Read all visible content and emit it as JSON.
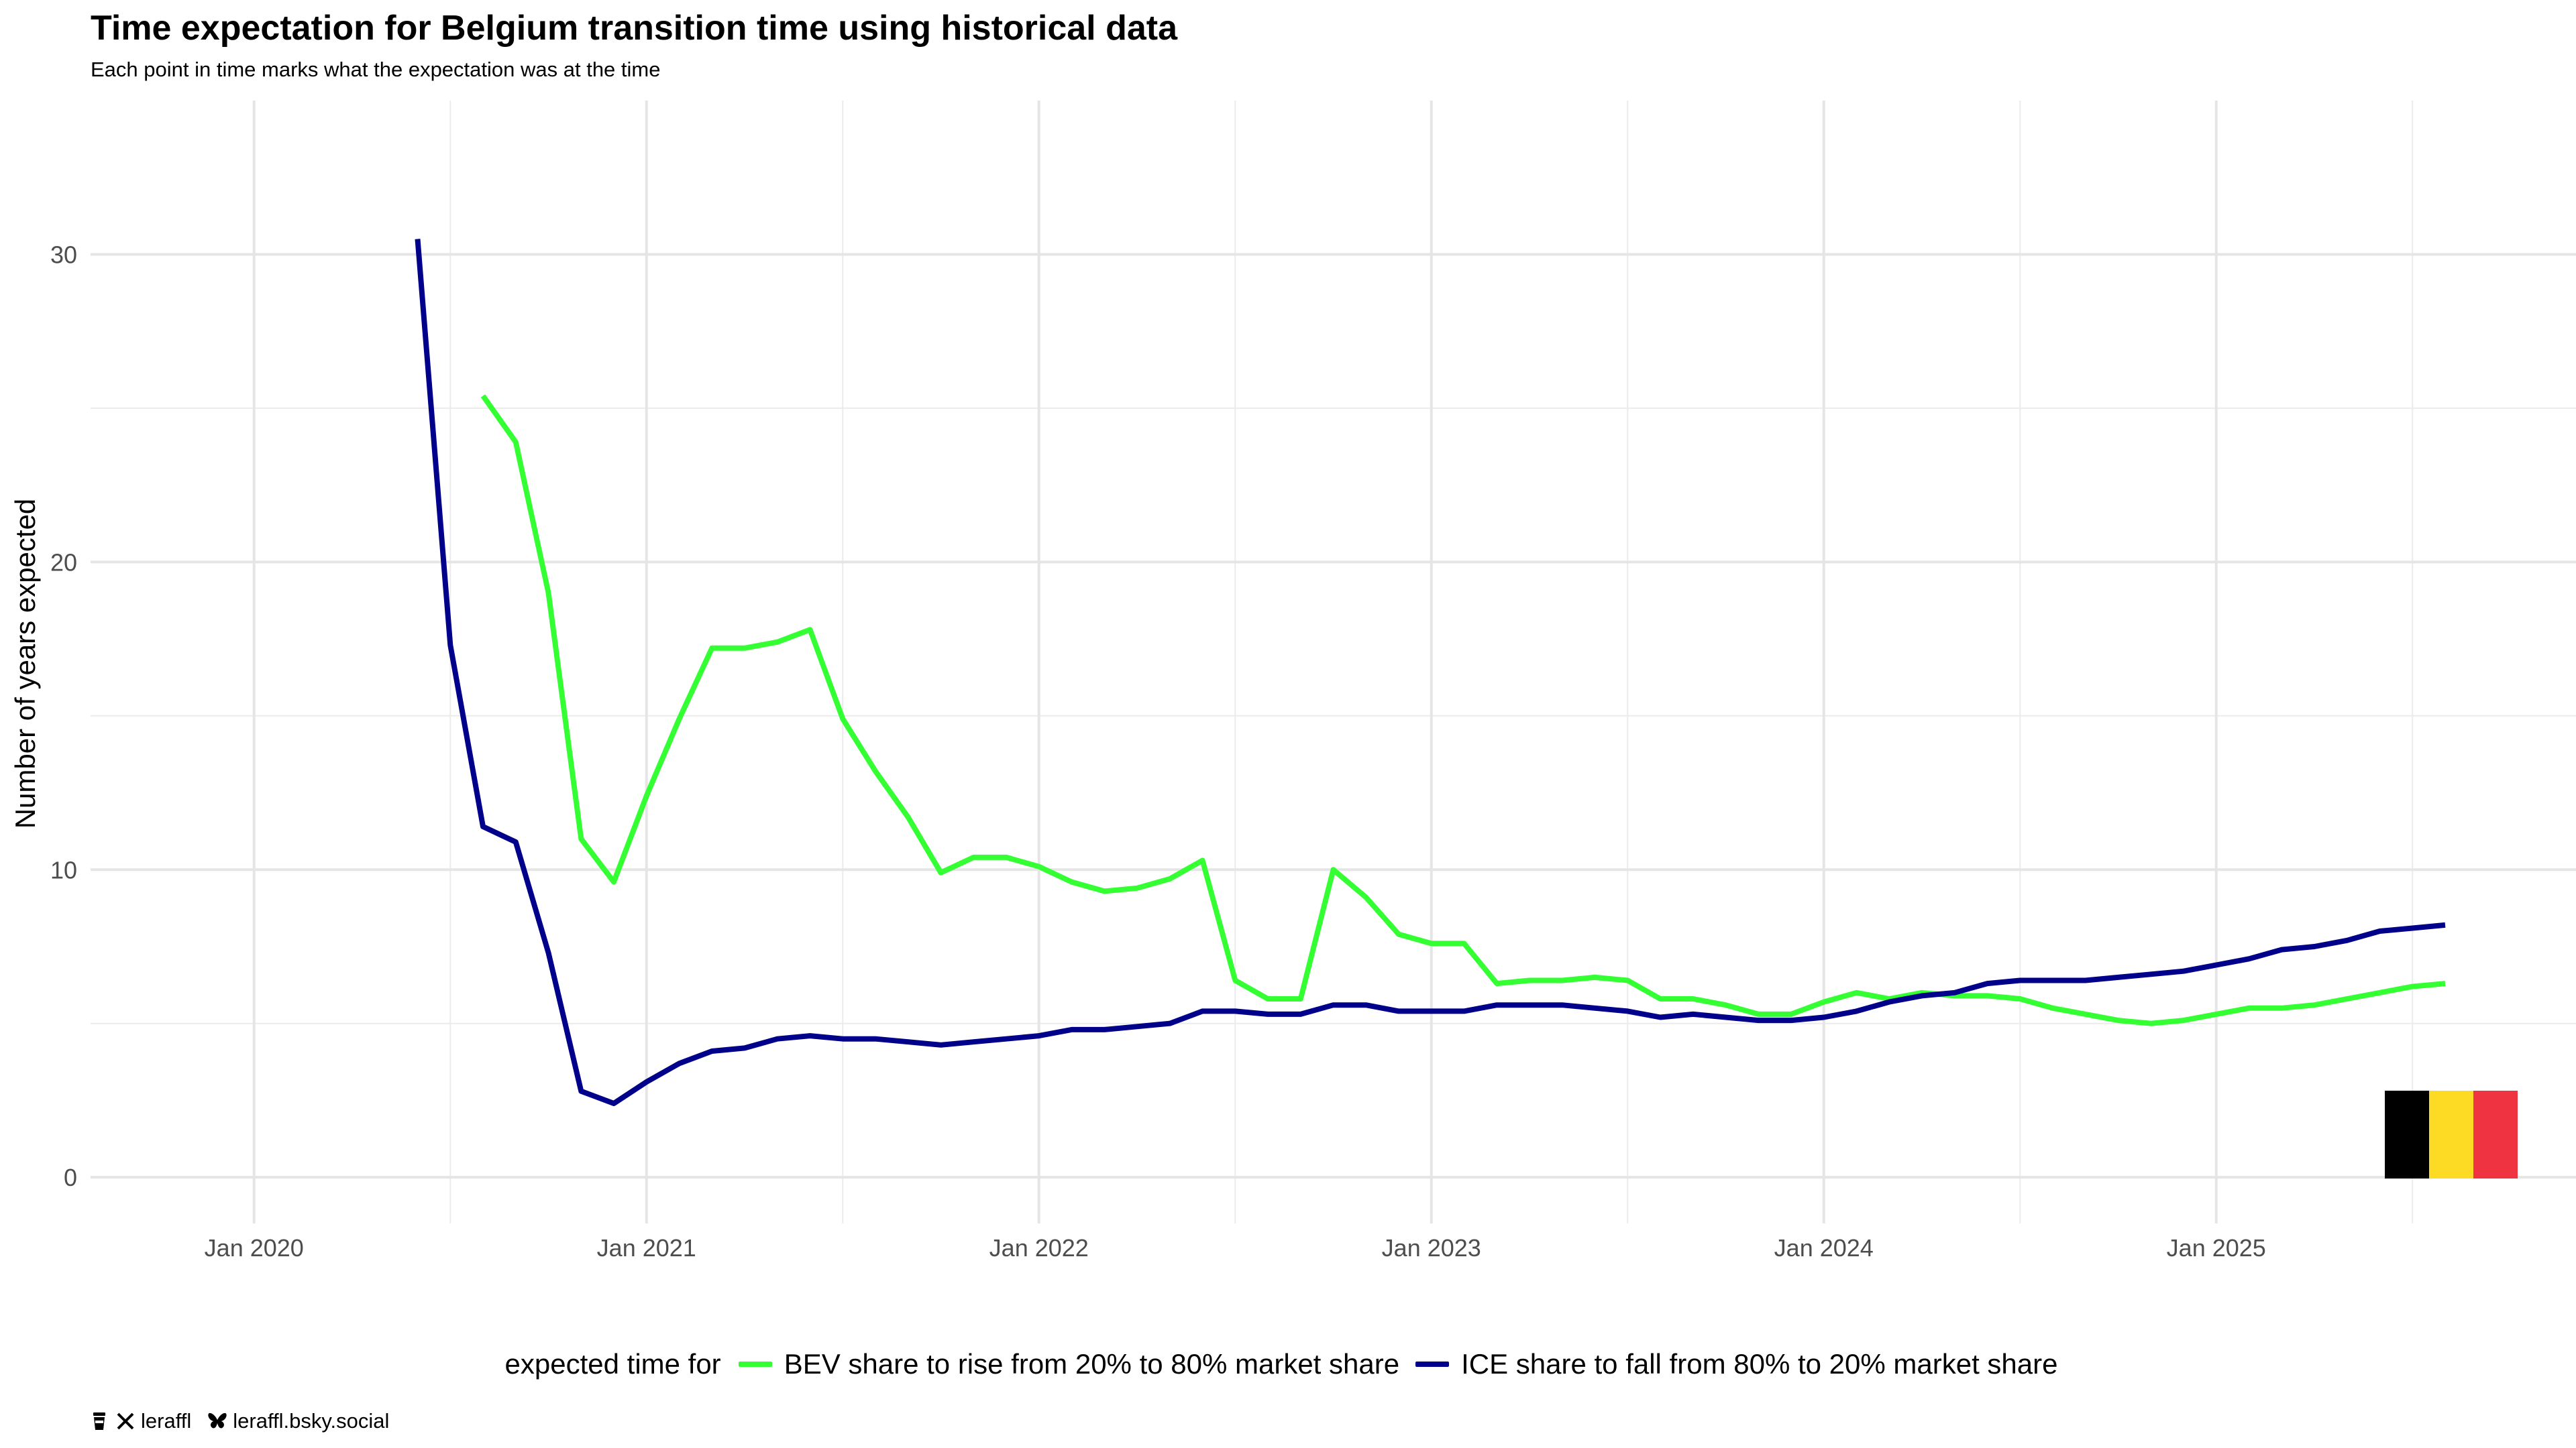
{
  "title": "Time expectation for Belgium transition time using historical data",
  "subtitle": "Each point in time marks what the expectation was at the time",
  "legend": {
    "title": "expected time for",
    "items": [
      {
        "label": "BEV share to rise from 20% to 80% market share",
        "color": "#33ff33"
      },
      {
        "label": "ICE share to fall from 80% to 20% market share",
        "color": "#00008b"
      }
    ]
  },
  "footer": {
    "icons": [
      "coffee-icon",
      "x-icon",
      "butterfly-icon"
    ],
    "handle": "leraffl",
    "bluesky": "leraffl.bsky.social"
  },
  "flag": {
    "country": "Belgium",
    "colors": [
      "#000000",
      "#fdda24",
      "#ef3340"
    ]
  },
  "chart_data": {
    "type": "line",
    "title": "Time expectation for Belgium transition time using historical data",
    "subtitle": "Each point in time marks what the expectation was at the time",
    "xlabel": "",
    "ylabel": "Number of years expected",
    "x_tick_labels": [
      "Jan 2020",
      "Jan 2021",
      "Jan 2022",
      "Jan 2023",
      "Jan 2024",
      "Jan 2025"
    ],
    "y_ticks": [
      0,
      10,
      20,
      30
    ],
    "xlim": [
      "2019-08",
      "2025-12"
    ],
    "ylim": [
      -1.5,
      35
    ],
    "grid": true,
    "legend_position": "bottom",
    "series": [
      {
        "name": "BEV share to rise from 20% to 80% market share",
        "color": "#33ff33",
        "points": [
          [
            "2020-08",
            25.4
          ],
          [
            "2020-09",
            23.9
          ],
          [
            "2020-10",
            19.0
          ],
          [
            "2020-11",
            11.0
          ],
          [
            "2020-12",
            9.6
          ],
          [
            "2021-01",
            12.4
          ],
          [
            "2021-02",
            14.9
          ],
          [
            "2021-03",
            17.2
          ],
          [
            "2021-04",
            17.2
          ],
          [
            "2021-05",
            17.4
          ],
          [
            "2021-06",
            17.8
          ],
          [
            "2021-07",
            14.9
          ],
          [
            "2021-08",
            13.2
          ],
          [
            "2021-09",
            11.7
          ],
          [
            "2021-10",
            9.9
          ],
          [
            "2021-11",
            10.4
          ],
          [
            "2021-12",
            10.4
          ],
          [
            "2022-01",
            10.1
          ],
          [
            "2022-02",
            9.6
          ],
          [
            "2022-03",
            9.3
          ],
          [
            "2022-04",
            9.4
          ],
          [
            "2022-05",
            9.7
          ],
          [
            "2022-06",
            10.3
          ],
          [
            "2022-07",
            6.4
          ],
          [
            "2022-08",
            5.8
          ],
          [
            "2022-09",
            5.8
          ],
          [
            "2022-10",
            10.0
          ],
          [
            "2022-11",
            9.1
          ],
          [
            "2022-12",
            7.9
          ],
          [
            "2023-01",
            7.6
          ],
          [
            "2023-02",
            7.6
          ],
          [
            "2023-03",
            6.3
          ],
          [
            "2023-04",
            6.4
          ],
          [
            "2023-05",
            6.4
          ],
          [
            "2023-06",
            6.5
          ],
          [
            "2023-07",
            6.4
          ],
          [
            "2023-08",
            5.8
          ],
          [
            "2023-09",
            5.8
          ],
          [
            "2023-10",
            5.6
          ],
          [
            "2023-11",
            5.3
          ],
          [
            "2023-12",
            5.3
          ],
          [
            "2024-01",
            5.7
          ],
          [
            "2024-02",
            6.0
          ],
          [
            "2024-03",
            5.8
          ],
          [
            "2024-04",
            6.0
          ],
          [
            "2024-05",
            5.9
          ],
          [
            "2024-06",
            5.9
          ],
          [
            "2024-07",
            5.8
          ],
          [
            "2024-08",
            5.5
          ],
          [
            "2024-09",
            5.3
          ],
          [
            "2024-10",
            5.1
          ],
          [
            "2024-11",
            5.0
          ],
          [
            "2024-12",
            5.1
          ],
          [
            "2025-01",
            5.3
          ],
          [
            "2025-02",
            5.5
          ],
          [
            "2025-03",
            5.5
          ],
          [
            "2025-04",
            5.6
          ],
          [
            "2025-05",
            5.8
          ],
          [
            "2025-06",
            6.0
          ],
          [
            "2025-07",
            6.2
          ],
          [
            "2025-08",
            6.3
          ]
        ]
      },
      {
        "name": "ICE share to fall from 80% to 20% market share",
        "color": "#00008b",
        "points": [
          [
            "2020-06",
            30.5
          ],
          [
            "2020-07",
            17.3
          ],
          [
            "2020-08",
            11.4
          ],
          [
            "2020-09",
            10.9
          ],
          [
            "2020-10",
            7.3
          ],
          [
            "2020-11",
            2.8
          ],
          [
            "2020-12",
            2.4
          ],
          [
            "2021-01",
            3.1
          ],
          [
            "2021-02",
            3.7
          ],
          [
            "2021-03",
            4.1
          ],
          [
            "2021-04",
            4.2
          ],
          [
            "2021-05",
            4.5
          ],
          [
            "2021-06",
            4.6
          ],
          [
            "2021-07",
            4.5
          ],
          [
            "2021-08",
            4.5
          ],
          [
            "2021-09",
            4.4
          ],
          [
            "2021-10",
            4.3
          ],
          [
            "2021-11",
            4.4
          ],
          [
            "2021-12",
            4.5
          ],
          [
            "2022-01",
            4.6
          ],
          [
            "2022-02",
            4.8
          ],
          [
            "2022-03",
            4.8
          ],
          [
            "2022-04",
            4.9
          ],
          [
            "2022-05",
            5.0
          ],
          [
            "2022-06",
            5.4
          ],
          [
            "2022-07",
            5.4
          ],
          [
            "2022-08",
            5.3
          ],
          [
            "2022-09",
            5.3
          ],
          [
            "2022-10",
            5.6
          ],
          [
            "2022-11",
            5.6
          ],
          [
            "2022-12",
            5.4
          ],
          [
            "2023-01",
            5.4
          ],
          [
            "2023-02",
            5.4
          ],
          [
            "2023-03",
            5.6
          ],
          [
            "2023-04",
            5.6
          ],
          [
            "2023-05",
            5.6
          ],
          [
            "2023-06",
            5.5
          ],
          [
            "2023-07",
            5.4
          ],
          [
            "2023-08",
            5.2
          ],
          [
            "2023-09",
            5.3
          ],
          [
            "2023-10",
            5.2
          ],
          [
            "2023-11",
            5.1
          ],
          [
            "2023-12",
            5.1
          ],
          [
            "2024-01",
            5.2
          ],
          [
            "2024-02",
            5.4
          ],
          [
            "2024-03",
            5.7
          ],
          [
            "2024-04",
            5.9
          ],
          [
            "2024-05",
            6.0
          ],
          [
            "2024-06",
            6.3
          ],
          [
            "2024-07",
            6.4
          ],
          [
            "2024-08",
            6.4
          ],
          [
            "2024-09",
            6.4
          ],
          [
            "2024-10",
            6.5
          ],
          [
            "2024-11",
            6.6
          ],
          [
            "2024-12",
            6.7
          ],
          [
            "2025-01",
            6.9
          ],
          [
            "2025-02",
            7.1
          ],
          [
            "2025-03",
            7.4
          ],
          [
            "2025-04",
            7.5
          ],
          [
            "2025-05",
            7.7
          ],
          [
            "2025-06",
            8.0
          ],
          [
            "2025-07",
            8.1
          ],
          [
            "2025-08",
            8.2
          ]
        ]
      }
    ]
  }
}
